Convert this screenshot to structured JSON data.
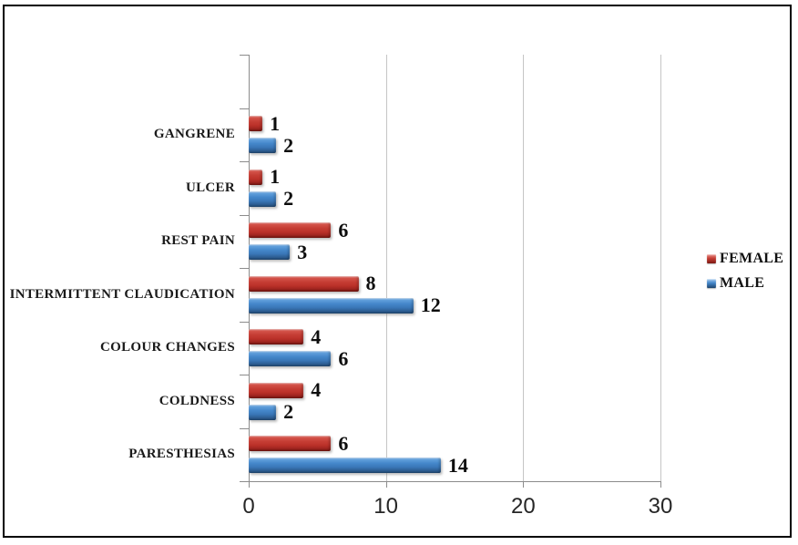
{
  "window": {
    "background_color": "#ffffff",
    "border_color": "#000000"
  },
  "chart_data": {
    "type": "bar",
    "orientation": "horizontal",
    "title": "",
    "categories": [
      "GANGRENE",
      "ULCER",
      "REST PAIN",
      "INTERMITTENT CLAUDICATION",
      "COLOUR CHANGES",
      "COLDNESS",
      "PARESTHESIAS"
    ],
    "series": [
      {
        "name": "FEMALE",
        "color": "#c23b33",
        "values": [
          1,
          1,
          6,
          8,
          4,
          4,
          6
        ]
      },
      {
        "name": "MALE",
        "color": "#3d7ec6",
        "values": [
          2,
          2,
          3,
          12,
          6,
          2,
          14
        ]
      }
    ],
    "xlim": [
      0,
      30
    ],
    "x_tick_values": [
      0,
      10,
      20,
      30
    ],
    "x_tick_labels": [
      "0",
      "10",
      "20",
      "30"
    ],
    "grid": "vertical-major",
    "data_labels": true,
    "legend": {
      "position": "right",
      "entries": [
        "FEMALE",
        "MALE"
      ]
    },
    "axis_color": "#8c8c8c",
    "gridline_color": "#c5c5c5"
  }
}
